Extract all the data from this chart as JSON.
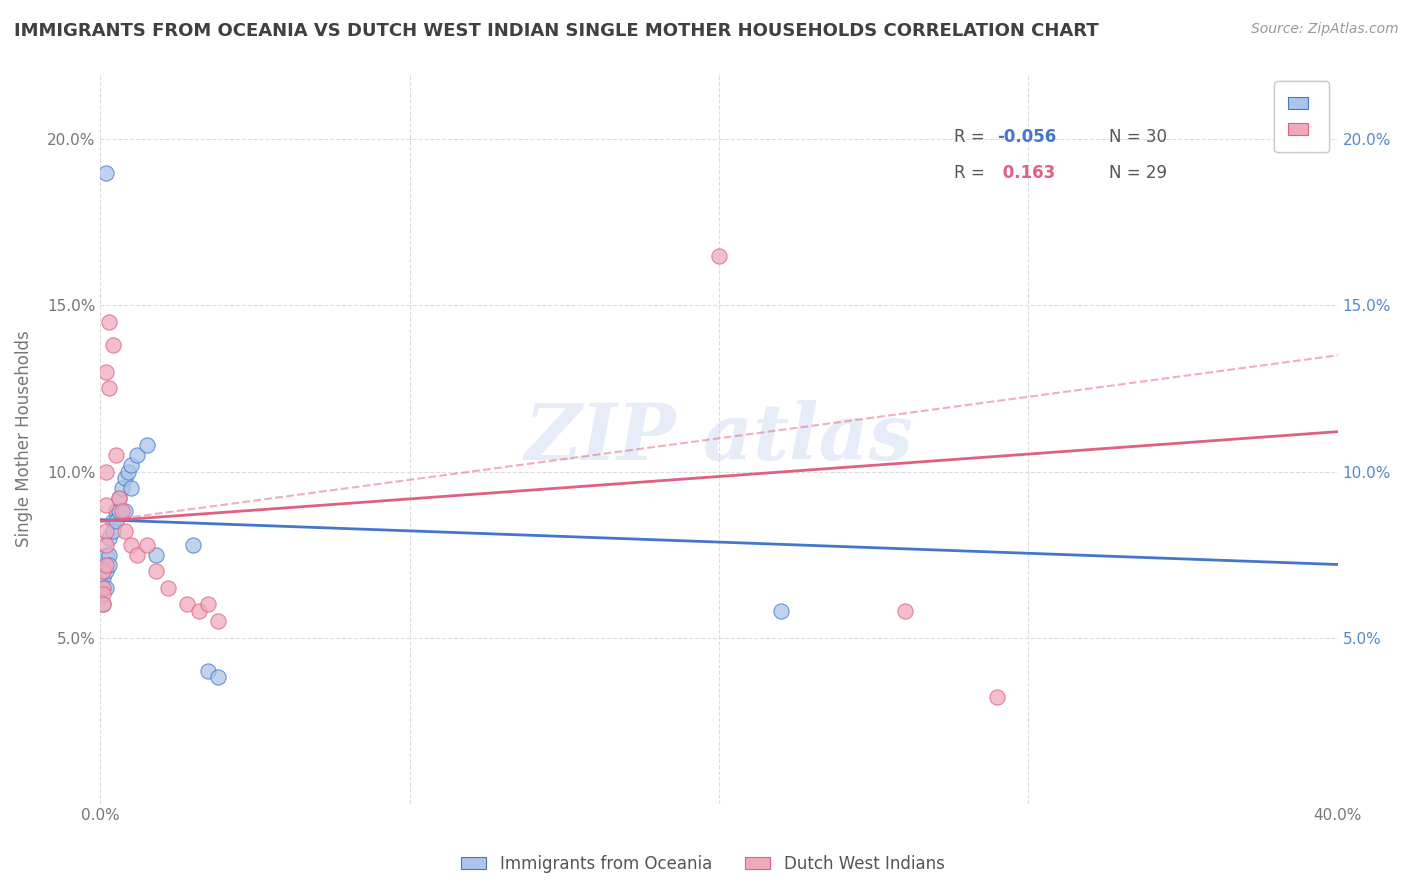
{
  "title": "IMMIGRANTS FROM OCEANIA VS DUTCH WEST INDIAN SINGLE MOTHER HOUSEHOLDS CORRELATION CHART",
  "source_text": "Source: ZipAtlas.com",
  "ylabel": "Single Mother Households",
  "xlim": [
    0.0,
    0.4
  ],
  "ylim": [
    0.0,
    0.22
  ],
  "blue_color": "#aac5e8",
  "pink_color": "#f0aabb",
  "blue_line_color": "#4477cc",
  "pink_line_color": "#e06080",
  "blue_scatter": [
    [
      0.002,
      0.19
    ],
    [
      0.001,
      0.072
    ],
    [
      0.001,
      0.068
    ],
    [
      0.001,
      0.065
    ],
    [
      0.001,
      0.06
    ],
    [
      0.002,
      0.075
    ],
    [
      0.002,
      0.07
    ],
    [
      0.002,
      0.065
    ],
    [
      0.003,
      0.08
    ],
    [
      0.003,
      0.075
    ],
    [
      0.003,
      0.072
    ],
    [
      0.004,
      0.085
    ],
    [
      0.004,
      0.082
    ],
    [
      0.005,
      0.088
    ],
    [
      0.005,
      0.085
    ],
    [
      0.006,
      0.092
    ],
    [
      0.006,
      0.088
    ],
    [
      0.007,
      0.095
    ],
    [
      0.008,
      0.098
    ],
    [
      0.008,
      0.088
    ],
    [
      0.009,
      0.1
    ],
    [
      0.01,
      0.102
    ],
    [
      0.01,
      0.095
    ],
    [
      0.012,
      0.105
    ],
    [
      0.015,
      0.108
    ],
    [
      0.018,
      0.075
    ],
    [
      0.03,
      0.078
    ],
    [
      0.035,
      0.04
    ],
    [
      0.038,
      0.038
    ],
    [
      0.22,
      0.058
    ]
  ],
  "pink_scatter": [
    [
      0.001,
      0.07
    ],
    [
      0.001,
      0.065
    ],
    [
      0.001,
      0.063
    ],
    [
      0.001,
      0.06
    ],
    [
      0.002,
      0.13
    ],
    [
      0.002,
      0.1
    ],
    [
      0.002,
      0.09
    ],
    [
      0.002,
      0.082
    ],
    [
      0.002,
      0.078
    ],
    [
      0.002,
      0.072
    ],
    [
      0.003,
      0.145
    ],
    [
      0.003,
      0.125
    ],
    [
      0.004,
      0.138
    ],
    [
      0.005,
      0.105
    ],
    [
      0.006,
      0.092
    ],
    [
      0.007,
      0.088
    ],
    [
      0.008,
      0.082
    ],
    [
      0.01,
      0.078
    ],
    [
      0.012,
      0.075
    ],
    [
      0.015,
      0.078
    ],
    [
      0.018,
      0.07
    ],
    [
      0.022,
      0.065
    ],
    [
      0.028,
      0.06
    ],
    [
      0.032,
      0.058
    ],
    [
      0.035,
      0.06
    ],
    [
      0.038,
      0.055
    ],
    [
      0.2,
      0.165
    ],
    [
      0.26,
      0.058
    ],
    [
      0.29,
      0.032
    ]
  ],
  "blue_line": {
    "x0": 0.0,
    "y0": 0.0855,
    "x1": 0.4,
    "y1": 0.072
  },
  "pink_line": {
    "x0": 0.0,
    "y0": 0.085,
    "x1": 0.4,
    "y1": 0.112
  },
  "pink_dashed_line": {
    "x0": 0.0,
    "y0": 0.085,
    "x1": 0.4,
    "y1": 0.135
  },
  "background_color": "#ffffff",
  "grid_color": "#dddddd",
  "title_color": "#404040",
  "source_color": "#999999",
  "watermark_color": "#c8d8f0",
  "watermark_text": "ZIP atlas"
}
